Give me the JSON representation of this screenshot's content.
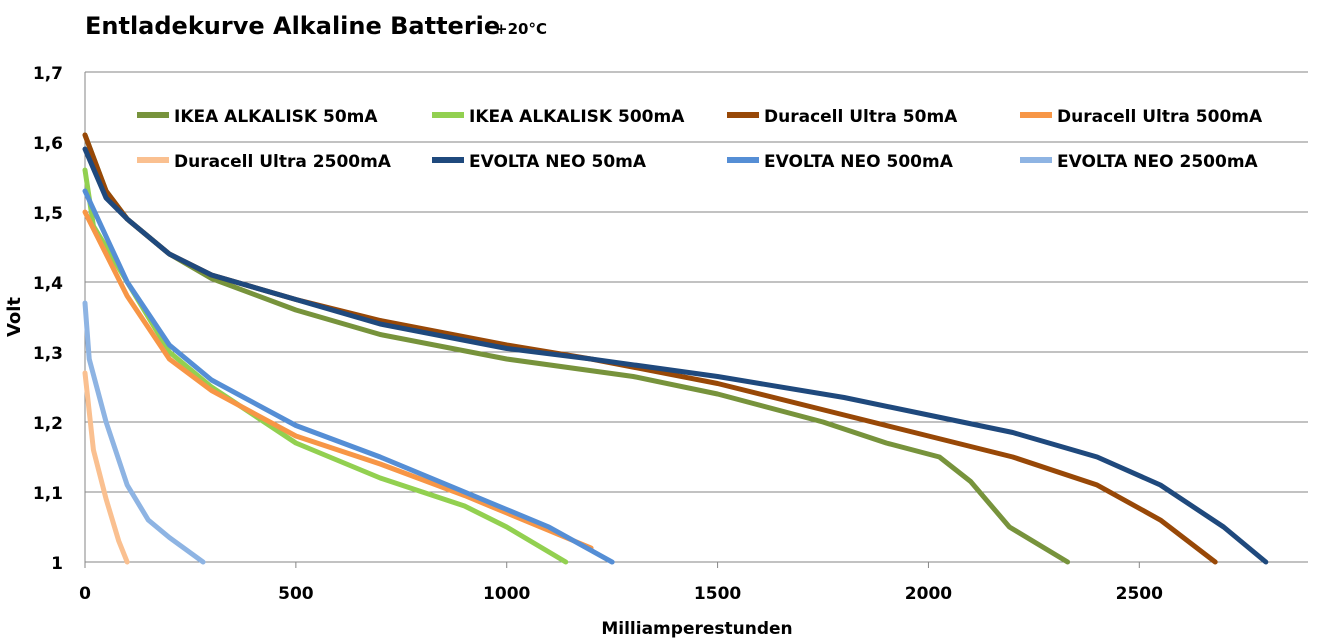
{
  "chart_data": {
    "type": "line",
    "title": "Entladekurve Alkaline Batterie",
    "title_suffix": "+20°C",
    "xlabel": "Milliamperestunden",
    "ylabel": "Volt",
    "xlim": [
      0,
      2900
    ],
    "ylim": [
      1.0,
      1.7
    ],
    "xticks": [
      0,
      500,
      1000,
      1500,
      2000,
      2500
    ],
    "xtick_labels": [
      "0",
      "500",
      "1000",
      "1500",
      "2000",
      "2500"
    ],
    "yticks": [
      1.0,
      1.1,
      1.2,
      1.3,
      1.4,
      1.5,
      1.6,
      1.7
    ],
    "ytick_labels": [
      "1",
      "1,1",
      "1,2",
      "1,3",
      "1,4",
      "1,5",
      "1,6",
      "1,7"
    ],
    "grid": "horizontal",
    "legend_position": "top",
    "series": [
      {
        "name": "IKEA ALKALISK 50mA",
        "color": "#77933C",
        "points": [
          [
            0,
            1.61
          ],
          [
            50,
            1.53
          ],
          [
            100,
            1.49
          ],
          [
            200,
            1.44
          ],
          [
            300,
            1.405
          ],
          [
            500,
            1.36
          ],
          [
            700,
            1.325
          ],
          [
            1000,
            1.29
          ],
          [
            1300,
            1.265
          ],
          [
            1500,
            1.24
          ],
          [
            1750,
            1.2
          ],
          [
            1900,
            1.17
          ],
          [
            2026,
            1.15
          ],
          [
            2100,
            1.115
          ],
          [
            2192,
            1.05
          ],
          [
            2330,
            1.0
          ]
        ]
      },
      {
        "name": "IKEA ALKALISK 500mA",
        "color": "#92D050",
        "points": [
          [
            0,
            1.56
          ],
          [
            20,
            1.48
          ],
          [
            100,
            1.4
          ],
          [
            200,
            1.3
          ],
          [
            300,
            1.25
          ],
          [
            500,
            1.17
          ],
          [
            700,
            1.12
          ],
          [
            900,
            1.08
          ],
          [
            1000,
            1.05
          ],
          [
            1140,
            1.0
          ]
        ]
      },
      {
        "name": "Duracell Ultra 50mA",
        "color": "#984807",
        "points": [
          [
            0,
            1.61
          ],
          [
            50,
            1.53
          ],
          [
            100,
            1.49
          ],
          [
            200,
            1.44
          ],
          [
            300,
            1.41
          ],
          [
            500,
            1.375
          ],
          [
            700,
            1.345
          ],
          [
            1000,
            1.31
          ],
          [
            1200,
            1.29
          ],
          [
            1500,
            1.255
          ],
          [
            1800,
            1.21
          ],
          [
            2000,
            1.18
          ],
          [
            2200,
            1.15
          ],
          [
            2400,
            1.11
          ],
          [
            2550,
            1.06
          ],
          [
            2680,
            1.0
          ]
        ]
      },
      {
        "name": "Duracell Ultra 500mA",
        "color": "#F79646",
        "points": [
          [
            0,
            1.5
          ],
          [
            100,
            1.38
          ],
          [
            200,
            1.29
          ],
          [
            300,
            1.245
          ],
          [
            500,
            1.18
          ],
          [
            700,
            1.14
          ],
          [
            900,
            1.095
          ],
          [
            1000,
            1.07
          ],
          [
            1100,
            1.045
          ],
          [
            1200,
            1.02
          ]
        ]
      },
      {
        "name": "Duracell Ultra 2500mA",
        "color": "#FAC090",
        "points": [
          [
            0,
            1.27
          ],
          [
            20,
            1.16
          ],
          [
            50,
            1.09
          ],
          [
            80,
            1.03
          ],
          [
            100,
            1.0
          ]
        ]
      },
      {
        "name": "EVOLTA NEO 50mA",
        "color": "#1F497D",
        "points": [
          [
            0,
            1.59
          ],
          [
            50,
            1.52
          ],
          [
            100,
            1.49
          ],
          [
            200,
            1.44
          ],
          [
            300,
            1.41
          ],
          [
            500,
            1.375
          ],
          [
            700,
            1.34
          ],
          [
            1000,
            1.305
          ],
          [
            1200,
            1.29
          ],
          [
            1500,
            1.265
          ],
          [
            1800,
            1.235
          ],
          [
            2000,
            1.21
          ],
          [
            2200,
            1.185
          ],
          [
            2400,
            1.15
          ],
          [
            2550,
            1.11
          ],
          [
            2700,
            1.05
          ],
          [
            2800,
            1.0
          ]
        ]
      },
      {
        "name": "EVOLTA NEO 500mA",
        "color": "#558ED5",
        "points": [
          [
            0,
            1.53
          ],
          [
            100,
            1.4
          ],
          [
            200,
            1.31
          ],
          [
            300,
            1.26
          ],
          [
            500,
            1.195
          ],
          [
            700,
            1.15
          ],
          [
            900,
            1.1
          ],
          [
            1000,
            1.075
          ],
          [
            1100,
            1.05
          ],
          [
            1250,
            1.0
          ]
        ]
      },
      {
        "name": "EVOLTA NEO 2500mA",
        "color": "#8EB4E3",
        "points": [
          [
            0,
            1.37
          ],
          [
            10,
            1.29
          ],
          [
            50,
            1.2
          ],
          [
            100,
            1.11
          ],
          [
            150,
            1.06
          ],
          [
            200,
            1.035
          ],
          [
            280,
            1.0
          ]
        ]
      }
    ]
  }
}
